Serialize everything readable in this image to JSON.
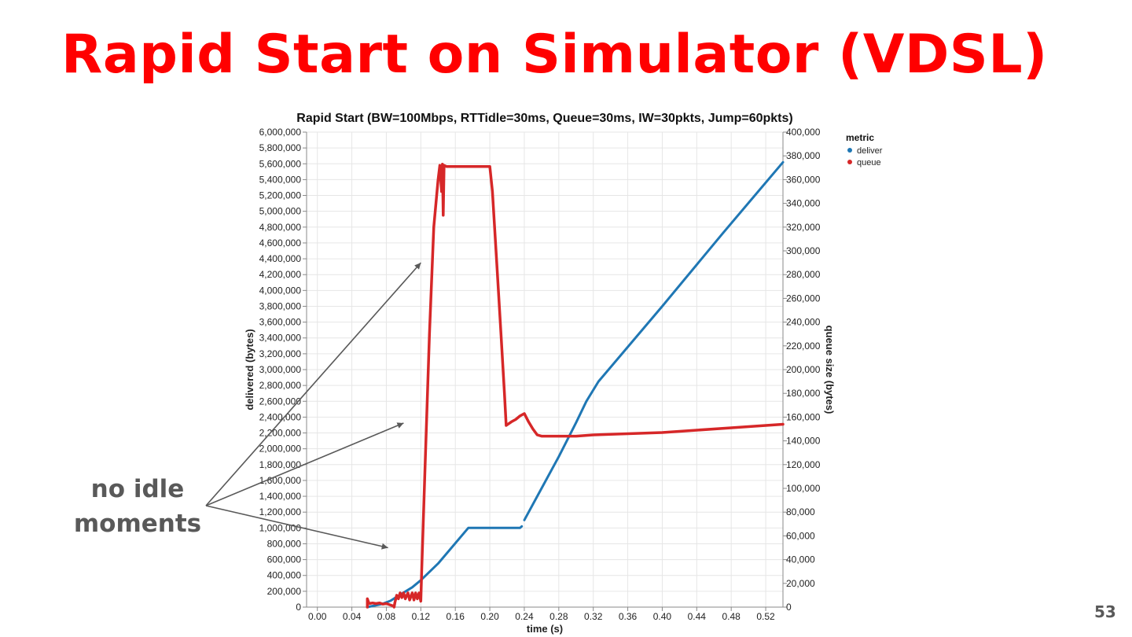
{
  "slide": {
    "title": "Rapid Start on Simulator (VDSL)",
    "annotation_line1": "no idle",
    "annotation_line2": "moments",
    "page_number": "53"
  },
  "chart_data": {
    "type": "line",
    "title": "Rapid Start (BW=100Mbps, RTTidle=30ms, Queue=30ms, IW=30pkts, Jump=60pkts)",
    "xlabel": "time (s)",
    "ylabel_left": "delivered (bytes)",
    "ylabel_right": "queue size (bytes)",
    "xlim": [
      -0.0125,
      0.54
    ],
    "ylim_left": [
      0,
      6000000
    ],
    "ylim_right": [
      0,
      400000
    ],
    "x_ticks": [
      "0.00",
      "0.04",
      "0.08",
      "0.12",
      "0.16",
      "0.20",
      "0.24",
      "0.28",
      "0.32",
      "0.36",
      "0.40",
      "0.44",
      "0.48",
      "0.52"
    ],
    "x_tick_values": [
      0.0,
      0.04,
      0.08,
      0.12,
      0.16,
      0.2,
      0.24,
      0.28,
      0.32,
      0.36,
      0.4,
      0.44,
      0.48,
      0.52
    ],
    "y_ticks_left": [
      "0",
      "200,000",
      "400,000",
      "600,000",
      "800,000",
      "1,000,000",
      "1,200,000",
      "1,400,000",
      "1,600,000",
      "1,800,000",
      "2,000,000",
      "2,200,000",
      "2,400,000",
      "2,600,000",
      "2,800,000",
      "3,000,000",
      "3,200,000",
      "3,400,000",
      "3,600,000",
      "3,800,000",
      "4,000,000",
      "4,200,000",
      "4,400,000",
      "4,600,000",
      "4,800,000",
      "5,000,000",
      "5,200,000",
      "5,400,000",
      "5,600,000",
      "5,800,000",
      "6,000,000"
    ],
    "y_ticks_right": [
      "0",
      "20,000",
      "40,000",
      "60,000",
      "80,000",
      "100,000",
      "120,000",
      "140,000",
      "160,000",
      "180,000",
      "200,000",
      "220,000",
      "240,000",
      "260,000",
      "280,000",
      "300,000",
      "320,000",
      "340,000",
      "360,000",
      "380,000",
      "400,000"
    ],
    "grid": true,
    "legend": {
      "title": "metric",
      "position": "top-right"
    },
    "series": [
      {
        "name": "deliver",
        "axis": "left",
        "color": "#1f77b4",
        "segments": [
          [
            [
              0.058,
              0
            ],
            [
              0.075,
              40000
            ],
            [
              0.085,
              80000
            ],
            [
              0.095,
              150000
            ],
            [
              0.11,
              250000
            ],
            [
              0.12,
              340000
            ],
            [
              0.14,
              550000
            ],
            [
              0.175,
              1000000
            ],
            [
              0.235,
              1000000
            ],
            [
              0.237,
              1020000
            ]
          ],
          [
            [
              0.24,
              1100000
            ],
            [
              0.26,
              1500000
            ],
            [
              0.28,
              1900000
            ],
            [
              0.3,
              2330000
            ],
            [
              0.312,
              2600000
            ],
            [
              0.326,
              2850000
            ],
            [
              0.4,
              3800000
            ],
            [
              0.47,
              4720000
            ],
            [
              0.54,
              5620000
            ]
          ]
        ]
      },
      {
        "name": "queue",
        "axis": "right",
        "color": "#d62728",
        "segments": [
          [
            [
              0.058,
              0
            ],
            [
              0.058,
              7000
            ],
            [
              0.06,
              3000
            ],
            [
              0.064,
              3500
            ],
            [
              0.068,
              3000
            ],
            [
              0.072,
              3500
            ],
            [
              0.076,
              2500
            ],
            [
              0.08,
              3000
            ],
            [
              0.084,
              2000
            ],
            [
              0.088,
              1000
            ],
            [
              0.089,
              0
            ],
            [
              0.09,
              4000
            ],
            [
              0.092,
              10000
            ],
            [
              0.094,
              7000
            ],
            [
              0.096,
              12000
            ],
            [
              0.098,
              8000
            ],
            [
              0.1,
              12000
            ],
            [
              0.102,
              7000
            ],
            [
              0.105,
              12000
            ],
            [
              0.107,
              6000
            ],
            [
              0.11,
              12000
            ],
            [
              0.112,
              6000
            ],
            [
              0.114,
              12000
            ],
            [
              0.116,
              7000
            ],
            [
              0.118,
              12000
            ],
            [
              0.12,
              5000
            ],
            [
              0.121,
              30000
            ],
            [
              0.125,
              120000
            ],
            [
              0.13,
              230000
            ],
            [
              0.135,
              320000
            ],
            [
              0.14,
              360000
            ],
            [
              0.142,
              372000
            ],
            [
              0.144,
              350000
            ],
            [
              0.145,
              373000
            ],
            [
              0.146,
              330000
            ],
            [
              0.147,
              372000
            ],
            [
              0.15,
              371000
            ],
            [
              0.2,
              371000
            ],
            [
              0.203,
              350000
            ],
            [
              0.208,
              290000
            ],
            [
              0.213,
              230000
            ],
            [
              0.217,
              180000
            ],
            [
              0.219,
              153000
            ],
            [
              0.225,
              156000
            ],
            [
              0.23,
              158000
            ],
            [
              0.235,
              161000
            ],
            [
              0.24,
              163000
            ],
            [
              0.245,
              156000
            ],
            [
              0.25,
              150000
            ],
            [
              0.255,
              145000
            ],
            [
              0.26,
              144000
            ],
            [
              0.3,
              144000
            ],
            [
              0.32,
              145000
            ],
            [
              0.36,
              146000
            ],
            [
              0.4,
              147000
            ],
            [
              0.44,
              149000
            ],
            [
              0.48,
              151000
            ],
            [
              0.52,
              153000
            ],
            [
              0.54,
              154000
            ]
          ]
        ]
      }
    ],
    "annotation": {
      "text": "no idle moments",
      "arrow_targets": [
        [
          0.082,
          50000
        ],
        [
          0.1,
          155000
        ],
        [
          0.12,
          290000
        ]
      ]
    }
  }
}
